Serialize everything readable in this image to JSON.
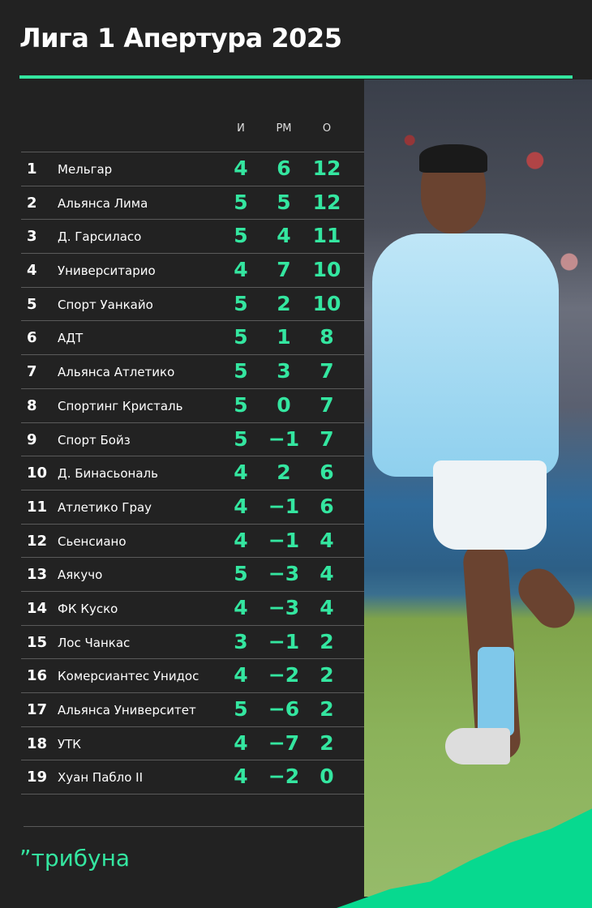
{
  "title": "Лига 1 Апертура 2025",
  "columns": {
    "played": "И",
    "goal_diff": "РМ",
    "points": "О"
  },
  "rows": [
    {
      "rank": "1",
      "team": "Мельгар",
      "played": "4",
      "gd": "6",
      "pts": "12"
    },
    {
      "rank": "2",
      "team": "Альянса Лима",
      "played": "5",
      "gd": "5",
      "pts": "12"
    },
    {
      "rank": "3",
      "team": "Д. Гарсиласо",
      "played": "5",
      "gd": "4",
      "pts": "11"
    },
    {
      "rank": "4",
      "team": "Университарио",
      "played": "4",
      "gd": "7",
      "pts": "10"
    },
    {
      "rank": "5",
      "team": "Спорт Уанкайо",
      "played": "5",
      "gd": "2",
      "pts": "10"
    },
    {
      "rank": "6",
      "team": "АДТ",
      "played": "5",
      "gd": "1",
      "pts": "8"
    },
    {
      "rank": "7",
      "team": "Альянса Атлетико",
      "played": "5",
      "gd": "3",
      "pts": "7"
    },
    {
      "rank": "8",
      "team": "Спортинг Кристаль",
      "played": "5",
      "gd": "0",
      "pts": "7"
    },
    {
      "rank": "9",
      "team": "Спорт Бойз",
      "played": "5",
      "gd": "-1",
      "pts": "7"
    },
    {
      "rank": "10",
      "team": "Д. Бинасьональ",
      "played": "4",
      "gd": "2",
      "pts": "6"
    },
    {
      "rank": "11",
      "team": "Атлетико Грау",
      "played": "4",
      "gd": "-1",
      "pts": "6"
    },
    {
      "rank": "12",
      "team": "Сьенсиано",
      "played": "4",
      "gd": "-1",
      "pts": "4"
    },
    {
      "rank": "13",
      "team": "Аякучо",
      "played": "5",
      "gd": "-3",
      "pts": "4"
    },
    {
      "rank": "14",
      "team": "ФК Куско",
      "played": "4",
      "gd": "-3",
      "pts": "4"
    },
    {
      "rank": "15",
      "team": "Лос Чанкас",
      "played": "3",
      "gd": "-1",
      "pts": "2"
    },
    {
      "rank": "16",
      "team": "Комерсиантес Унидос",
      "played": "4",
      "gd": "-2",
      "pts": "2"
    },
    {
      "rank": "17",
      "team": "Альянса Университет",
      "played": "5",
      "gd": "-6",
      "pts": "2"
    },
    {
      "rank": "18",
      "team": "УТК",
      "played": "4",
      "gd": "-7",
      "pts": "2"
    },
    {
      "rank": "19",
      "team": "Хуан Пабло II",
      "played": "4",
      "gd": "-2",
      "pts": "0"
    }
  ],
  "logo": "”трибуна",
  "colors": {
    "background": "#222222",
    "accent": "#34e6a0",
    "brand_green": "#07d98f"
  }
}
